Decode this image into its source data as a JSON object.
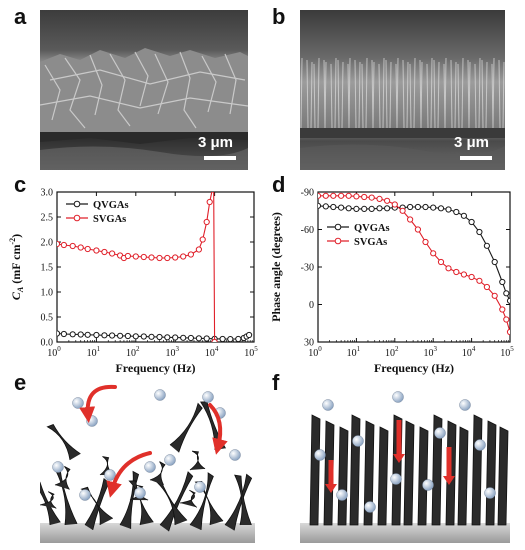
{
  "panels": {
    "a": {
      "letter": "a",
      "scale_label": "3 μm"
    },
    "b": {
      "letter": "b",
      "scale_label": "3 μm"
    },
    "c": {
      "letter": "c"
    },
    "d": {
      "letter": "d"
    },
    "e": {
      "letter": "e"
    },
    "f": {
      "letter": "f"
    }
  },
  "colors": {
    "qvgas": "#1a1a1a",
    "svgas": "#e0202a",
    "arrow": "#e0302a",
    "ion": "#c8d8ec",
    "flake": "#2a2a2a"
  },
  "chart_data": [
    {
      "panel": "c",
      "type": "line",
      "xlabel": "Frequency (Hz)",
      "ylabel_italic": "C",
      "ylabel_sub": "A",
      "ylabel_rest": " (mF cm",
      "ylabel_sup": "-2",
      "ylabel_close": ")",
      "x_scale": "log",
      "xlim": [
        1,
        100000
      ],
      "ylim": [
        0.0,
        3.0
      ],
      "x_ticks": [
        1,
        10,
        100,
        1000,
        10000,
        100000
      ],
      "x_tick_labels": [
        [
          "10",
          "0"
        ],
        [
          "10",
          "1"
        ],
        [
          "10",
          "2"
        ],
        [
          "10",
          "3"
        ],
        [
          "10",
          "4"
        ],
        [
          "10",
          "5"
        ]
      ],
      "y_ticks": [
        0.0,
        0.5,
        1.0,
        1.5,
        2.0,
        2.5,
        3.0
      ],
      "y_tick_labels": [
        "0.0",
        "0.5",
        "1.0",
        "1.5",
        "2.0",
        "2.5",
        "3.0"
      ],
      "legend_position": "top-left",
      "series": [
        {
          "name": "QVGAs",
          "marker": "circle",
          "x": [
            1,
            1.5,
            2.5,
            4,
            6,
            10,
            16,
            25,
            40,
            63,
            100,
            160,
            250,
            400,
            630,
            1000,
            1600,
            2500,
            4000,
            6300,
            10000,
            16000,
            25000,
            40000,
            55000,
            65000,
            75000
          ],
          "y": [
            0.17,
            0.16,
            0.155,
            0.15,
            0.145,
            0.14,
            0.135,
            0.13,
            0.125,
            0.12,
            0.115,
            0.11,
            0.105,
            0.1,
            0.095,
            0.09,
            0.085,
            0.08,
            0.075,
            0.07,
            0.065,
            0.06,
            0.058,
            0.06,
            0.08,
            0.11,
            0.14
          ]
        },
        {
          "name": "SVGAs",
          "marker": "circle",
          "x": [
            1,
            1.5,
            2.5,
            4,
            6,
            10,
            16,
            25,
            40,
            50,
            63,
            100,
            160,
            250,
            400,
            630,
            1000,
            1600,
            2500,
            4000,
            5000,
            6300,
            7500,
            8500,
            9500,
            10000
          ],
          "y": [
            1.96,
            1.94,
            1.92,
            1.89,
            1.86,
            1.83,
            1.8,
            1.77,
            1.73,
            1.68,
            1.72,
            1.71,
            1.7,
            1.69,
            1.68,
            1.68,
            1.69,
            1.71,
            1.75,
            1.85,
            2.05,
            2.4,
            2.8,
            3.0,
            3.0,
            0.0
          ]
        }
      ]
    },
    {
      "panel": "d",
      "type": "line",
      "xlabel": "Frequency (Hz)",
      "ylabel": "Phase angle (degrees)",
      "x_scale": "log",
      "xlim": [
        1,
        100000
      ],
      "ylim": [
        -90,
        30
      ],
      "y_inverted": true,
      "x_ticks": [
        1,
        10,
        100,
        1000,
        10000,
        100000
      ],
      "x_tick_labels": [
        [
          "10",
          "0"
        ],
        [
          "10",
          "1"
        ],
        [
          "10",
          "2"
        ],
        [
          "10",
          "3"
        ],
        [
          "10",
          "4"
        ],
        [
          "10",
          "5"
        ]
      ],
      "y_ticks": [
        -90,
        -60,
        -30,
        0,
        30
      ],
      "y_tick_labels": [
        "-90",
        "-60",
        "-30",
        "0",
        "30"
      ],
      "legend_position": "upper-left",
      "series": [
        {
          "name": "QVGAs",
          "marker": "circle",
          "x": [
            1,
            1.6,
            2.5,
            4,
            6.3,
            10,
            16,
            25,
            40,
            63,
            100,
            160,
            250,
            400,
            630,
            1000,
            1600,
            2500,
            4000,
            6300,
            10000,
            16000,
            25000,
            40000,
            63000,
            80000,
            100000
          ],
          "y": [
            -79,
            -78.5,
            -78,
            -77.5,
            -77,
            -76.5,
            -76.5,
            -76.5,
            -77,
            -77,
            -77.5,
            -77.5,
            -78,
            -78,
            -78,
            -77.5,
            -77,
            -76,
            -74,
            -71,
            -66,
            -58,
            -47,
            -34,
            -18,
            -9,
            -3
          ]
        },
        {
          "name": "SVGAs",
          "marker": "circle",
          "x": [
            1,
            1.6,
            2.5,
            4,
            6.3,
            10,
            16,
            25,
            40,
            63,
            100,
            160,
            250,
            400,
            630,
            1000,
            1600,
            2500,
            4000,
            6300,
            10000,
            16000,
            25000,
            40000,
            63000,
            80000,
            100000
          ],
          "y": [
            -87,
            -87,
            -87,
            -87,
            -87,
            -86.5,
            -86,
            -85.5,
            -84.5,
            -83,
            -80,
            -75,
            -68,
            -60,
            -50,
            -41,
            -34,
            -29,
            -26,
            -24,
            -22,
            -19,
            -14,
            -7,
            4,
            12,
            22
          ]
        }
      ]
    }
  ]
}
